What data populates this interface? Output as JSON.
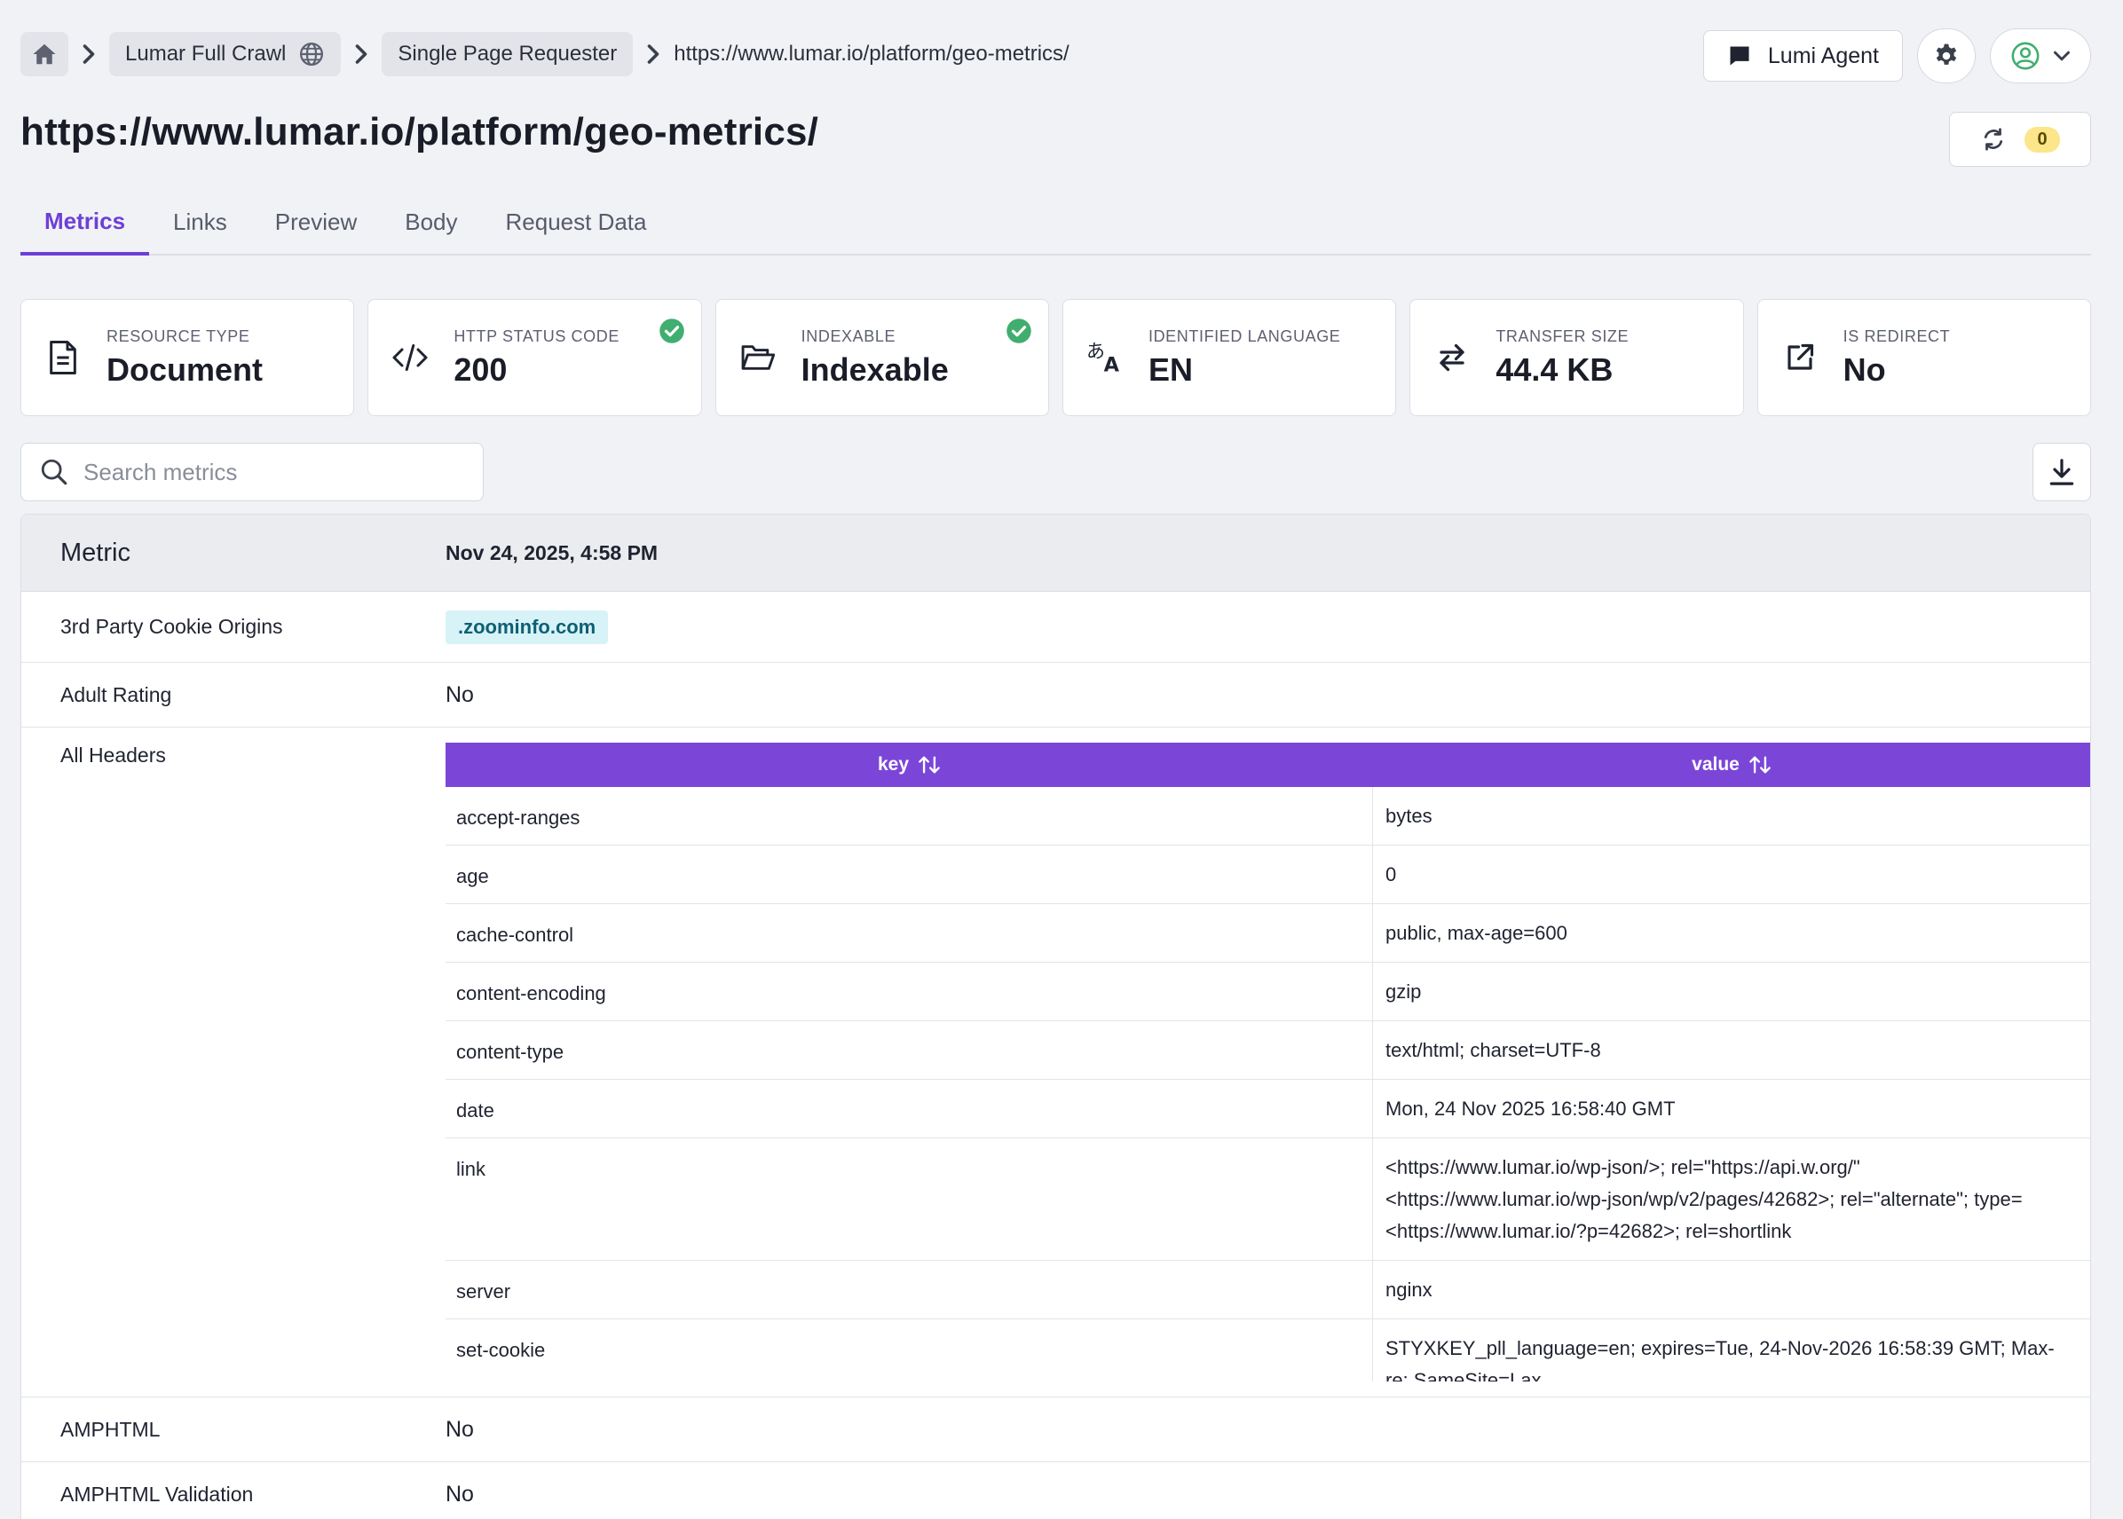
{
  "breadcrumb": {
    "project": "Lumar Full Crawl",
    "tool": "Single Page Requester",
    "url": "https://www.lumar.io/platform/geo-metrics/"
  },
  "header": {
    "agent_label": "Lumi Agent",
    "refresh_count": "0"
  },
  "page": {
    "title": "https://www.lumar.io/platform/geo-metrics/"
  },
  "tabs": [
    {
      "label": "Metrics",
      "active": true
    },
    {
      "label": "Links"
    },
    {
      "label": "Preview"
    },
    {
      "label": "Body"
    },
    {
      "label": "Request Data"
    }
  ],
  "cards": [
    {
      "label": "RESOURCE TYPE",
      "value": "Document",
      "icon": "document-icon"
    },
    {
      "label": "HTTP STATUS CODE",
      "value": "200",
      "icon": "code-icon",
      "check": true
    },
    {
      "label": "INDEXABLE",
      "value": "Indexable",
      "icon": "folder-open-icon",
      "check": true
    },
    {
      "label": "IDENTIFIED LANGUAGE",
      "value": "EN",
      "icon": "translate-icon"
    },
    {
      "label": "TRANSFER SIZE",
      "value": "44.4 KB",
      "icon": "transfer-arrows-icon"
    },
    {
      "label": "IS REDIRECT",
      "value": "No",
      "icon": "external-link-icon"
    }
  ],
  "search": {
    "placeholder": "Search metrics"
  },
  "metrics": {
    "header_metric": "Metric",
    "header_date": "Nov 24, 2025, 4:58 PM",
    "rows": [
      {
        "name": "3rd Party Cookie Origins",
        "value": ".zoominfo.com"
      },
      {
        "name": "Adult Rating",
        "value": "No"
      },
      {
        "name": "All Headers"
      },
      {
        "name": "AMPHTML",
        "value": "No"
      },
      {
        "name": "AMPHTML Validation",
        "value": "No"
      }
    ]
  },
  "headers_table": {
    "columns": [
      "key",
      "value"
    ],
    "rows": [
      {
        "key": "accept-ranges",
        "value": [
          "bytes"
        ]
      },
      {
        "key": "age",
        "value": [
          "0"
        ]
      },
      {
        "key": "cache-control",
        "value": [
          "public, max-age=600"
        ]
      },
      {
        "key": "content-encoding",
        "value": [
          "gzip"
        ]
      },
      {
        "key": "content-type",
        "value": [
          "text/html; charset=UTF-8"
        ]
      },
      {
        "key": "date",
        "value": [
          "Mon, 24 Nov 2025 16:58:40 GMT"
        ]
      },
      {
        "key": "link",
        "value": [
          "<https://www.lumar.io/wp-json/>; rel=\"https://api.w.org/\"",
          "<https://www.lumar.io/wp-json/wp/v2/pages/42682>; rel=\"alternate\"; type=",
          "<https://www.lumar.io/?p=42682>; rel=shortlink"
        ]
      },
      {
        "key": "server",
        "value": [
          "nginx"
        ]
      },
      {
        "key": "set-cookie",
        "value": [
          "STYXKEY_pll_language=en; expires=Tue, 24-Nov-2026 16:58:39 GMT; Max-",
          "re; SameSite=Lax"
        ]
      }
    ]
  },
  "colors": {
    "accent": "#6d3fd6",
    "table_header": "#7b46d8",
    "success": "#3fae6e",
    "chip_bg": "#d7f3f8",
    "badge_bg": "#fde68a"
  }
}
